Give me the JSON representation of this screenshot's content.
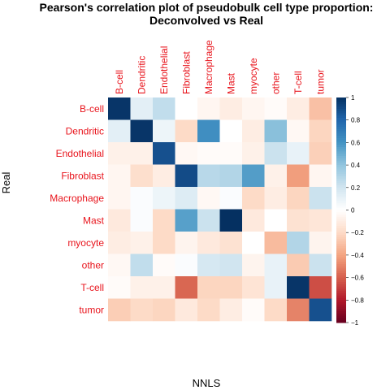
{
  "chart_data": {
    "type": "heatmap",
    "title": [
      "Pearson's correlation plot of pseudobulk cell type proportion:",
      "Deconvolved vs Real"
    ],
    "xlabel": "NNLS",
    "ylabel": "Real",
    "columns": [
      "B-cell",
      "Dendritic",
      "Endothelial",
      "Fibroblast",
      "Macrophage",
      "Mast",
      "myocyte",
      "other",
      "T-cell",
      "tumor"
    ],
    "rows": [
      "B-cell",
      "Dendritic",
      "Endothelial",
      "Fibroblast",
      "Macrophage",
      "Mast",
      "myocyte",
      "other",
      "T-cell",
      "tumor"
    ],
    "values": [
      [
        0.98,
        0.12,
        0.25,
        0.0,
        -0.05,
        -0.1,
        -0.05,
        -0.02,
        -0.1,
        -0.3
      ],
      [
        0.12,
        0.98,
        0.08,
        -0.2,
        0.62,
        0.0,
        -0.1,
        0.42,
        -0.04,
        -0.22
      ],
      [
        -0.08,
        -0.08,
        0.88,
        -0.04,
        -0.02,
        -0.02,
        -0.08,
        0.22,
        0.1,
        -0.24
      ],
      [
        -0.05,
        -0.18,
        -0.1,
        0.9,
        0.28,
        0.3,
        0.56,
        -0.08,
        -0.42,
        -0.05
      ],
      [
        -0.05,
        0.02,
        0.08,
        0.15,
        -0.04,
        0.02,
        -0.2,
        -0.1,
        -0.22,
        0.22
      ],
      [
        -0.12,
        0.02,
        -0.2,
        0.55,
        0.22,
        1.0,
        -0.12,
        0.0,
        -0.16,
        -0.14
      ],
      [
        -0.1,
        -0.08,
        -0.2,
        -0.06,
        -0.12,
        -0.16,
        0.0,
        -0.32,
        0.3,
        -0.06
      ],
      [
        -0.04,
        0.25,
        -0.02,
        0.02,
        0.18,
        0.2,
        -0.06,
        0.1,
        -0.26,
        0.22
      ],
      [
        -0.02,
        -0.08,
        -0.08,
        -0.58,
        -0.22,
        -0.22,
        -0.15,
        0.1,
        0.98,
        -0.65
      ],
      [
        -0.25,
        -0.2,
        -0.22,
        -0.12,
        -0.2,
        -0.1,
        -0.02,
        -0.2,
        -0.5,
        0.88
      ]
    ],
    "colorbar": {
      "range": [
        -1,
        1
      ],
      "ticks": [
        "1",
        "0.8",
        "0.6",
        "0.4",
        "0.2",
        "0",
        "−0.2",
        "−0.4",
        "−0.6",
        "−0.8",
        "−1"
      ],
      "colors": [
        "#67001f",
        "#b2182b",
        "#d6604d",
        "#f4a582",
        "#fddbc7",
        "#ffffff",
        "#d1e5f0",
        "#92c5de",
        "#4393c3",
        "#2166ac",
        "#053061"
      ]
    }
  }
}
